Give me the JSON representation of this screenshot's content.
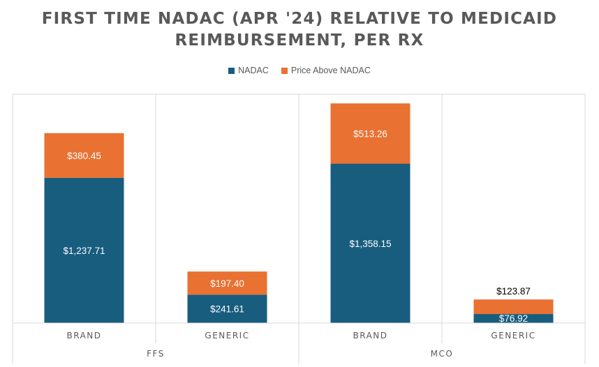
{
  "chart_data": {
    "type": "bar",
    "stacked": true,
    "title_lines": [
      "FIRST TIME NADAC (APR '24) RELATIVE TO MEDICAID",
      "REIMBURSEMENT, PER RX"
    ],
    "group_labels": [
      "FFS",
      "MCO"
    ],
    "categories": [
      "BRAND",
      "GENERIC",
      "BRAND",
      "GENERIC"
    ],
    "series": [
      {
        "name": "NADAC",
        "color": "#185C7E",
        "values": [
          1237.71,
          241.61,
          1358.15,
          76.92
        ],
        "labels": [
          "$1,237.71",
          "$241.61",
          "$1,358.15",
          "$76.92"
        ]
      },
      {
        "name": "Price Above NADAC",
        "color": "#E97132",
        "values": [
          380.45,
          197.4,
          513.26,
          123.87
        ],
        "labels": [
          "$380.45",
          "$197.40",
          "$513.26",
          "$123.87"
        ]
      }
    ],
    "ylim": [
      0,
      1950
    ],
    "legend_position": "top",
    "grid": false
  }
}
